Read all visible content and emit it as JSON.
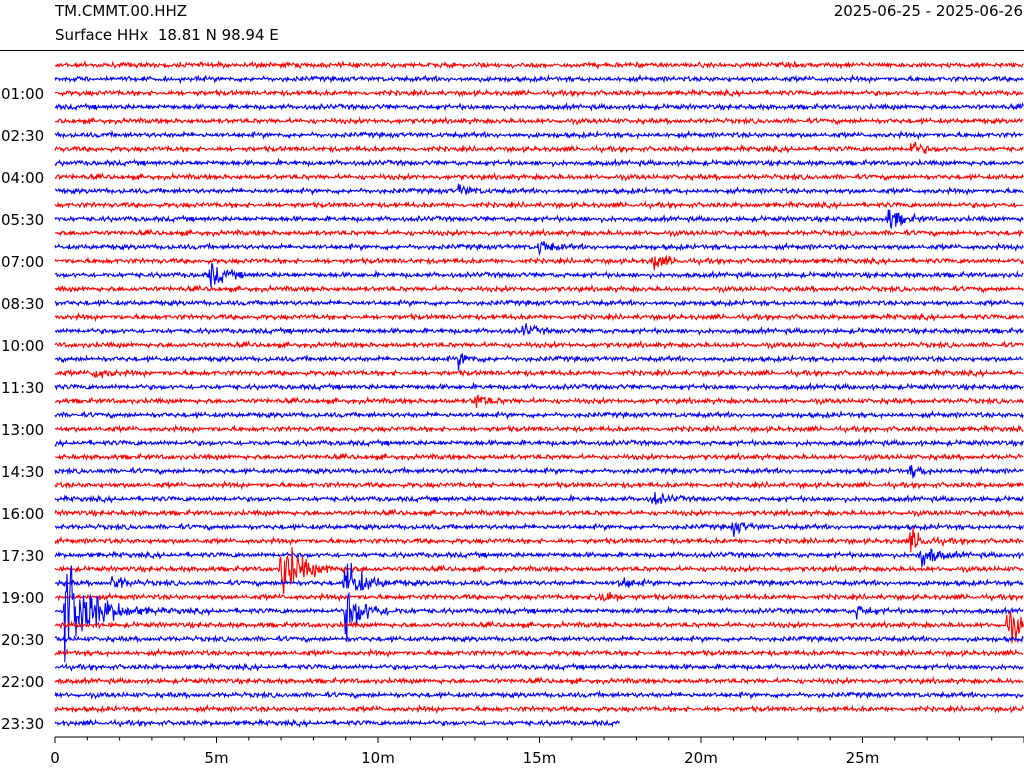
{
  "header": {
    "station": "TM.CMMT.00.HHZ",
    "location": "Surface HHx  18.81 N 98.94 E",
    "date_range": "2025-06-25 - 2025-06-26"
  },
  "chart_data": {
    "type": "line",
    "title": "",
    "xlabel": "",
    "ylabel": "",
    "x_unit": "minutes",
    "xlim": [
      0,
      30
    ],
    "x_ticks": [
      {
        "value": 0,
        "label": "0"
      },
      {
        "value": 5,
        "label": "5m"
      },
      {
        "value": 10,
        "label": "10m"
      },
      {
        "value": 15,
        "label": "15m"
      },
      {
        "value": 20,
        "label": "20m"
      },
      {
        "value": 25,
        "label": "25m"
      }
    ],
    "y_ticks": [
      "01:00",
      "02:30",
      "04:00",
      "05:30",
      "07:00",
      "08:30",
      "10:00",
      "11:30",
      "13:00",
      "14:30",
      "16:00",
      "17:30",
      "19:00",
      "20:30",
      "22:00",
      "23:30"
    ],
    "trace_colors": [
      "#ff0000",
      "#0000ff"
    ],
    "rows_per_hour": 2,
    "total_rows": 48,
    "last_row_end_minute": 17.5,
    "events": [
      {
        "row": 6,
        "minute": 26.5,
        "amp": 1.4
      },
      {
        "row": 9,
        "minute": 12.5,
        "amp": 1.2
      },
      {
        "row": 11,
        "minute": 25.8,
        "amp": 2.2
      },
      {
        "row": 13,
        "minute": 15.0,
        "amp": 1.4
      },
      {
        "row": 14,
        "minute": 18.5,
        "amp": 1.8
      },
      {
        "row": 15,
        "minute": 4.8,
        "amp": 2.5
      },
      {
        "row": 19,
        "minute": 14.5,
        "amp": 1.2
      },
      {
        "row": 21,
        "minute": 12.5,
        "amp": 1.5
      },
      {
        "row": 22,
        "minute": 1.2,
        "amp": 1.3
      },
      {
        "row": 24,
        "minute": 13.0,
        "amp": 1.6
      },
      {
        "row": 29,
        "minute": 26.5,
        "amp": 1.3
      },
      {
        "row": 31,
        "minute": 18.5,
        "amp": 1.3
      },
      {
        "row": 33,
        "minute": 21.0,
        "amp": 1.4
      },
      {
        "row": 34,
        "minute": 26.5,
        "amp": 2.3
      },
      {
        "row": 35,
        "minute": 26.8,
        "amp": 2.6
      },
      {
        "row": 36,
        "minute": 7.0,
        "amp": 6.0
      },
      {
        "row": 37,
        "minute": 9.0,
        "amp": 4.5
      },
      {
        "row": 37,
        "minute": 1.8,
        "amp": 1.6
      },
      {
        "row": 37,
        "minute": 17.5,
        "amp": 1.3
      },
      {
        "row": 38,
        "minute": 16.8,
        "amp": 2.0
      },
      {
        "row": 39,
        "minute": 0.3,
        "amp": 10.0
      },
      {
        "row": 39,
        "minute": 9.0,
        "amp": 5.0
      },
      {
        "row": 39,
        "minute": 24.8,
        "amp": 1.3
      },
      {
        "row": 40,
        "minute": 29.5,
        "amp": 3.5
      }
    ]
  }
}
